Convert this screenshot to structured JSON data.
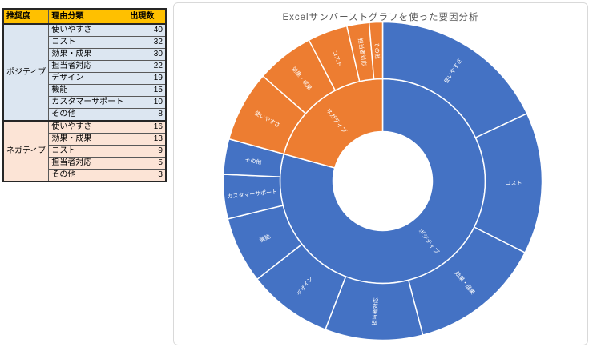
{
  "table": {
    "headers": [
      "推奨度",
      "理由分類",
      "出現数"
    ],
    "header_fill": "#FFC000",
    "groups": [
      {
        "label": "ポジティブ",
        "key": "positive",
        "fill": "#DCE6F1",
        "rows": [
          {
            "reason": "使いやすさ",
            "count": 40
          },
          {
            "reason": "コスト",
            "count": 32
          },
          {
            "reason": "効果・成果",
            "count": 30
          },
          {
            "reason": "担当者対応",
            "count": 22
          },
          {
            "reason": "デザイン",
            "count": 19
          },
          {
            "reason": "機能",
            "count": 15
          },
          {
            "reason": "カスタマーサポート",
            "count": 10
          },
          {
            "reason": "その他",
            "count": 8
          }
        ]
      },
      {
        "label": "ネガティブ",
        "key": "negative",
        "fill": "#FCE4D6",
        "rows": [
          {
            "reason": "使いやすさ",
            "count": 16
          },
          {
            "reason": "効果・成果",
            "count": 13
          },
          {
            "reason": "コスト",
            "count": 9
          },
          {
            "reason": "担当者対応",
            "count": 5
          },
          {
            "reason": "その他",
            "count": 3
          }
        ]
      }
    ]
  },
  "chart": {
    "title": "Excelサンバーストグラフを使った要因分析"
  },
  "chart_data": {
    "type": "sunburst",
    "title": "Excelサンバーストグラフを使った要因分析",
    "total": 222,
    "start_angle_deg": 0,
    "direction": "clockwise-from-top",
    "rings": 2,
    "colors": {
      "positive": "#4472C4",
      "negative": "#ED7D31"
    },
    "series": [
      {
        "name": "ポジティブ",
        "key": "positive",
        "color": "#4472C4",
        "total": 176,
        "children": [
          {
            "key": "usability",
            "label": "使いやすさ",
            "value": 40
          },
          {
            "key": "cost",
            "label": "コスト",
            "value": 32
          },
          {
            "key": "results",
            "label": "効果・成果",
            "value": 30
          },
          {
            "key": "staff-response",
            "label": "担当者対応",
            "value": 22
          },
          {
            "key": "design",
            "label": "デザイン",
            "value": 19
          },
          {
            "key": "features",
            "label": "機能",
            "value": 15
          },
          {
            "key": "customer-support",
            "label": "カスタマーサポート",
            "value": 10
          },
          {
            "key": "other",
            "label": "その他",
            "value": 8
          }
        ]
      },
      {
        "name": "ネガティブ",
        "key": "negative",
        "color": "#ED7D31",
        "total": 46,
        "children": [
          {
            "key": "usability",
            "label": "使いやすさ",
            "value": 16
          },
          {
            "key": "results",
            "label": "効果・成果",
            "value": 13
          },
          {
            "key": "cost",
            "label": "コスト",
            "value": 9
          },
          {
            "key": "staff-response",
            "label": "担当者対応",
            "value": 5
          },
          {
            "key": "other",
            "label": "その他",
            "value": 3
          }
        ]
      }
    ]
  }
}
